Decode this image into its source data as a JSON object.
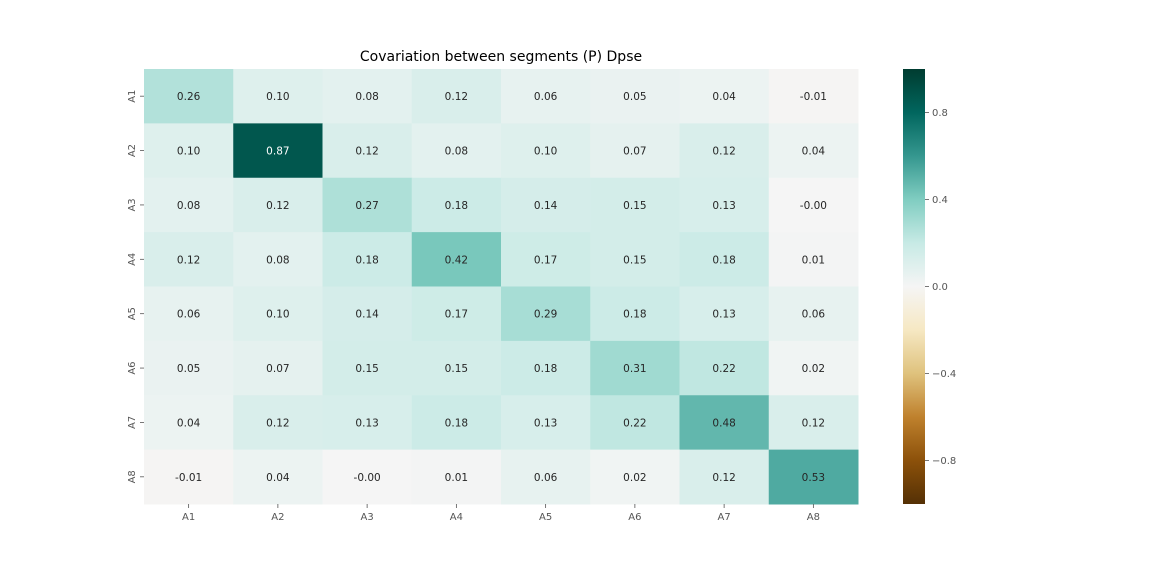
{
  "chart_data": {
    "type": "heatmap",
    "title": "Covariation between segments (P) Dpse",
    "x_categories": [
      "A1",
      "A2",
      "A3",
      "A4",
      "A5",
      "A6",
      "A7",
      "A8"
    ],
    "y_categories": [
      "A1",
      "A2",
      "A3",
      "A4",
      "A5",
      "A6",
      "A7",
      "A8"
    ],
    "values": [
      [
        0.26,
        0.1,
        0.08,
        0.12,
        0.06,
        0.05,
        0.04,
        -0.01
      ],
      [
        0.1,
        0.87,
        0.12,
        0.08,
        0.1,
        0.07,
        0.12,
        0.04
      ],
      [
        0.08,
        0.12,
        0.27,
        0.18,
        0.14,
        0.15,
        0.13,
        -0.0
      ],
      [
        0.12,
        0.08,
        0.18,
        0.42,
        0.17,
        0.15,
        0.18,
        0.01
      ],
      [
        0.06,
        0.1,
        0.14,
        0.17,
        0.29,
        0.18,
        0.13,
        0.06
      ],
      [
        0.05,
        0.07,
        0.15,
        0.15,
        0.18,
        0.31,
        0.22,
        0.02
      ],
      [
        0.04,
        0.12,
        0.13,
        0.18,
        0.13,
        0.22,
        0.48,
        0.12
      ],
      [
        -0.01,
        0.04,
        -0.0,
        0.01,
        0.06,
        0.02,
        0.12,
        0.53
      ]
    ],
    "value_labels": [
      [
        "0.26",
        "0.10",
        "0.08",
        "0.12",
        "0.06",
        "0.05",
        "0.04",
        "-0.01"
      ],
      [
        "0.10",
        "0.87",
        "0.12",
        "0.08",
        "0.10",
        "0.07",
        "0.12",
        "0.04"
      ],
      [
        "0.08",
        "0.12",
        "0.27",
        "0.18",
        "0.14",
        "0.15",
        "0.13",
        "-0.00"
      ],
      [
        "0.12",
        "0.08",
        "0.18",
        "0.42",
        "0.17",
        "0.15",
        "0.18",
        "0.01"
      ],
      [
        "0.06",
        "0.10",
        "0.14",
        "0.17",
        "0.29",
        "0.18",
        "0.13",
        "0.06"
      ],
      [
        "0.05",
        "0.07",
        "0.15",
        "0.15",
        "0.18",
        "0.31",
        "0.22",
        "0.02"
      ],
      [
        "0.04",
        "0.12",
        "0.13",
        "0.18",
        "0.13",
        "0.22",
        "0.48",
        "0.12"
      ],
      [
        "-0.01",
        "0.04",
        "-0.00",
        "0.01",
        "0.06",
        "0.02",
        "0.12",
        "0.53"
      ]
    ],
    "colorbar": {
      "range": [
        -1.0,
        1.0
      ],
      "ticks": [
        0.8,
        0.4,
        0.0,
        -0.4,
        -0.8
      ],
      "tick_labels": [
        "0.8",
        "0.4",
        "0.0",
        "−0.4",
        "−0.8"
      ],
      "colormap": "BrBG"
    }
  }
}
